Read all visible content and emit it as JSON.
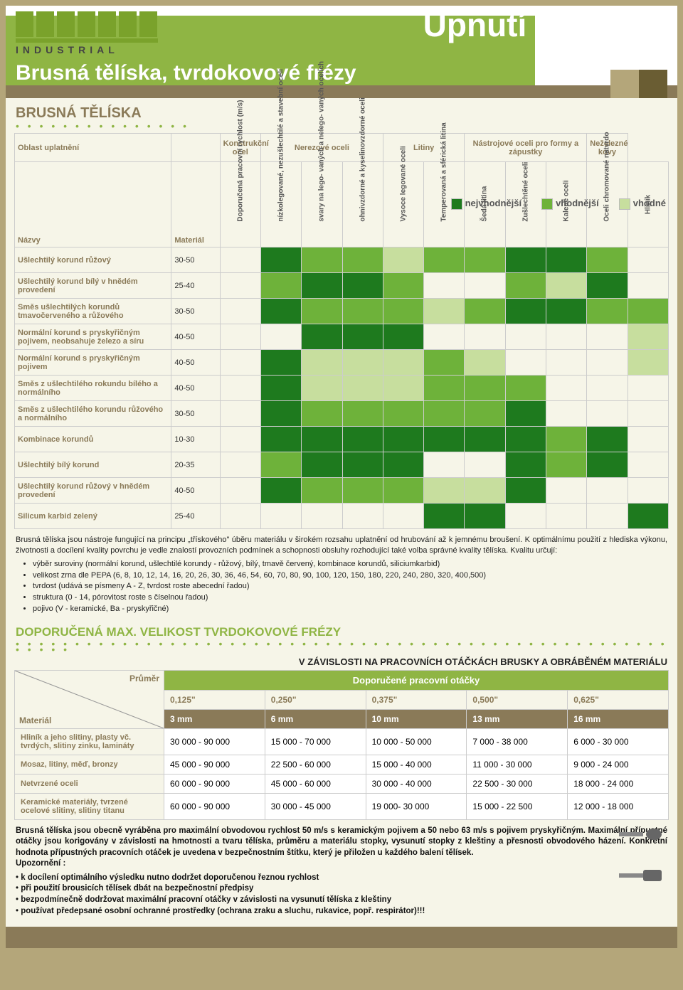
{
  "header": {
    "brand_tag": "INDUSTRIAL",
    "title_main": "Upnutí nástroje",
    "title_sub": "Brusná tělíska, tvrdokovové frézy"
  },
  "section1": {
    "title": "BRUSNÁ TĚLÍSKA",
    "legend": [
      {
        "label": "nejvhodnější",
        "color": "#1e7a1e"
      },
      {
        "label": "vhodnější",
        "color": "#6eb23a"
      },
      {
        "label": "vhodné",
        "color": "#c7de9e"
      }
    ],
    "col_oblast": "Oblast uplatnění",
    "col_material": "Materiál",
    "col_nazvy": "Názvy",
    "groups": [
      "Konstrukční ocel",
      "Nerezové oceli",
      "Litiny",
      "Nástrojové oceli pro formy a zápustky",
      "Neželezné kovy"
    ],
    "rot_cols": [
      {
        "label": "Doporučená pracovní rychlost (m/s)"
      },
      {
        "label": "nízkolegované, nezušlechtilé a stavební oceli",
        "group": 0
      },
      {
        "label": "svary na lego- vaných a nelego- vaných ocelích",
        "group": 1
      },
      {
        "label": "ohnivzdorné a kyselinovzdorné oceli",
        "group": 1
      },
      {
        "label": "Vysoce legované oceli",
        "group": 1
      },
      {
        "label": "Temperovaná a sférická litina",
        "group": 2
      },
      {
        "label": "Šedá litina",
        "group": 2
      },
      {
        "label": "Zušlechtěné oceli",
        "group": 3
      },
      {
        "label": "Kalené oceli",
        "group": 3
      },
      {
        "label": "Oceli chromované natvrdo",
        "group": 3
      },
      {
        "label": "Hliník",
        "group": 4
      }
    ],
    "palette": {
      "1": "#1e7a1e",
      "2": "#6eb23a",
      "3": "#c7de9e",
      "0": ""
    },
    "rows": [
      {
        "name": "Ušlechtilý korund růžový",
        "mat": "30-50",
        "cells": [
          0,
          1,
          2,
          2,
          3,
          2,
          2,
          1,
          1,
          2,
          0
        ]
      },
      {
        "name": "Ušlechtilý korund bílý v hnědém provedení",
        "mat": "25-40",
        "cells": [
          0,
          2,
          1,
          1,
          2,
          0,
          0,
          2,
          3,
          1,
          0
        ]
      },
      {
        "name": "Směs ušlechtilých korundů tmavočerveného a růžového",
        "mat": "30-50",
        "cells": [
          0,
          1,
          2,
          2,
          2,
          3,
          2,
          1,
          1,
          2,
          2
        ]
      },
      {
        "name": "Normální korund s pryskyřičným pojivem, neobsahuje železo a síru",
        "mat": "40-50",
        "cells": [
          0,
          0,
          1,
          1,
          1,
          0,
          0,
          0,
          0,
          0,
          3
        ]
      },
      {
        "name": "Normální korund s pryskyřičným pojivem",
        "mat": "40-50",
        "cells": [
          0,
          1,
          3,
          3,
          3,
          2,
          3,
          0,
          0,
          0,
          3
        ]
      },
      {
        "name": "Směs z ušlechtilého rokundu bílého a normálního",
        "mat": "40-50",
        "cells": [
          0,
          1,
          3,
          3,
          3,
          2,
          2,
          2,
          0,
          0,
          0
        ]
      },
      {
        "name": "Směs z ušlechtilého korundu růžového a normálního",
        "mat": "30-50",
        "cells": [
          0,
          1,
          2,
          2,
          2,
          2,
          2,
          1,
          0,
          0,
          0
        ]
      },
      {
        "name": "Kombinace korundů",
        "mat": "10-30",
        "cells": [
          0,
          1,
          1,
          1,
          1,
          1,
          1,
          1,
          2,
          1,
          0
        ]
      },
      {
        "name": "Ušlechtilý bílý korund",
        "mat": "20-35",
        "cells": [
          0,
          2,
          1,
          1,
          1,
          0,
          0,
          1,
          2,
          1,
          0
        ]
      },
      {
        "name": "Ušlechtilý korund růžový v hnědém provedení",
        "mat": "40-50",
        "cells": [
          0,
          1,
          2,
          2,
          2,
          3,
          3,
          1,
          0,
          0,
          0
        ]
      },
      {
        "name": "Silicum karbid zelený",
        "mat": "25-40",
        "cells": [
          0,
          0,
          0,
          0,
          0,
          1,
          1,
          0,
          0,
          0,
          1
        ]
      }
    ],
    "body_p1": "Brusná tělíska jsou nástroje fungující na principu „třískového\" úběru materiálu v širokém rozsahu uplatnění od hrubování až k jemnému broušení. K optimálnímu použití z hlediska výkonu, životnosti a docílení kvality povrchu je vedle znalostí provozních podmínek a schopnosti obsluhy rozhodující také volba správné kvality tělíska. Kvalitu určují:",
    "body_list": [
      "výběr suroviny (normální korund, ušlechtilé korundy - růžový, bílý, tmavě červený, kombinace korundů, siliciumkarbid)",
      "velikost zrna dle PEPA (6, 8, 10, 12, 14, 16, 20, 26, 30, 36, 46, 54, 60, 70, 80, 90, 100, 120, 150, 180, 220, 240, 280, 320, 400,500)",
      "tvrdost (udává se písmeny A - Z, tvrdost roste abecední řadou)",
      "struktura (0 - 14, pórovitost roste s číselnou řadou)",
      "pojivo (V - keramické, Ba - pryskyřičné)"
    ]
  },
  "section2": {
    "title": "DOPORUČENÁ MAX. VELIKOST TVRDOKOVOVÉ FRÉZY",
    "subtitle": "V ZÁVISLOSTI NA PRACOVNÍCH OTÁČKÁCH BRUSKY A OBRÁBĚNÉM MATERIÁLU",
    "head_band": "Doporučené pracovní otáčky",
    "corner_mat": "Materiál",
    "corner_dia": "Průměr",
    "inches": [
      "0,125\"",
      "0,250\"",
      "0,375\"",
      "0,500\"",
      "0,625\""
    ],
    "mm": [
      "3 mm",
      "6 mm",
      "10 mm",
      "13 mm",
      "16 mm"
    ],
    "rows": [
      {
        "name": "Hliník a jeho slitiny, plasty vč. tvrdých, slitiny zinku, lamináty",
        "cells": [
          "30 000 - 90 000",
          "15 000 - 70 000",
          "10 000 - 50 000",
          "7 000 - 38 000",
          "6 000 - 30 000"
        ]
      },
      {
        "name": "Mosaz, litiny, měď, bronzy",
        "cells": [
          "45 000 - 90 000",
          "22 500 - 60 000",
          "15 000 - 40 000",
          "11 000 - 30 000",
          "9 000 - 24 000"
        ]
      },
      {
        "name": "Netvrzené oceli",
        "cells": [
          "60 000 - 90 000",
          "45 000 - 60 000",
          "30 000 - 40 000",
          "22 500 - 30 000",
          "18 000 - 24 000"
        ]
      },
      {
        "name": "Keramické materiály, tvrzené ocelové slitiny, slitiny titanu",
        "cells": [
          "60 000 - 90 000",
          "30 000 - 45 000",
          "19 000- 30 000",
          "15 000 - 22 500",
          "12 000 - 18 000"
        ]
      }
    ],
    "foot_p1": "Brusná tělíska jsou obecně vyráběna pro maximální obvodovou rychlost 50 m/s s keramickým pojivem a 50 nebo 63 m/s s pojivem pryskyřičným. Maximální přípustné otáčky jsou korigovány v závislosti na hmotnosti a tvaru tělíska, průměru a materiálu stopky, vysunutí stopky z kleštiny a přesnosti obvodového házení. Konkrétní hodnota přípustných pracovních otáček je uvedena v bezpečnostním štítku, který je přiložen u každého balení tělísek.",
    "foot_warn": "Upozornění :",
    "foot_bullets": [
      "k docílení optimálního výsledku nutno dodržet doporučenou řeznou rychlost",
      "při použití brousicích tělísek dbát na bezpečnostní předpisy",
      "bezpodmínečně dodržovat maximální pracovní otáčky v závislosti na vysunutí tělíska z kleštiny",
      "používat předepsané osobní ochranné prostředky (ochrana zraku a sluchu, rukavice, popř. respirátor)!!!"
    ]
  }
}
